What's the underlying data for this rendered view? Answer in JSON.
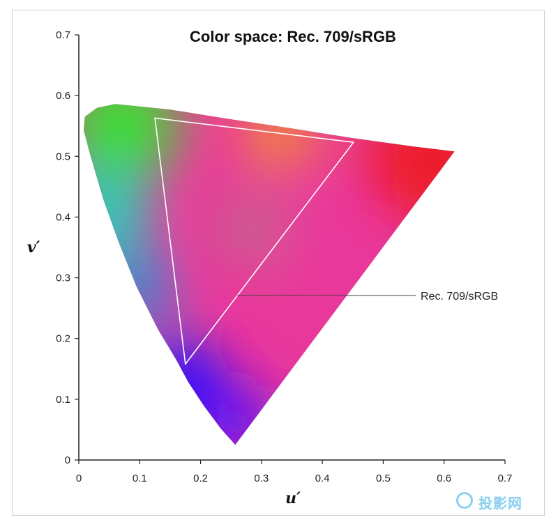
{
  "chart_data": {
    "type": "scatter",
    "title": "Color space: Rec. 709/sRGB",
    "xlabel": "u′",
    "ylabel": "v′",
    "xlim": [
      0,
      0.7
    ],
    "ylim": [
      0,
      0.7
    ],
    "x_ticks": [
      "0",
      "0.1",
      "0.2",
      "0.3",
      "0.4",
      "0.5",
      "0.6",
      "0.7"
    ],
    "y_ticks": [
      "0",
      "0.1",
      "0.2",
      "0.3",
      "0.4",
      "0.5",
      "0.6",
      "0.7"
    ],
    "grid": false,
    "spectral_locus": [
      [
        0.257,
        0.025
      ],
      [
        0.233,
        0.052
      ],
      [
        0.205,
        0.09
      ],
      [
        0.18,
        0.128
      ],
      [
        0.16,
        0.165
      ],
      [
        0.13,
        0.215
      ],
      [
        0.095,
        0.285
      ],
      [
        0.065,
        0.36
      ],
      [
        0.04,
        0.43
      ],
      [
        0.018,
        0.505
      ],
      [
        0.008,
        0.543
      ],
      [
        0.01,
        0.565
      ],
      [
        0.03,
        0.58
      ],
      [
        0.06,
        0.586
      ],
      [
        0.1,
        0.582
      ],
      [
        0.15,
        0.577
      ],
      [
        0.25,
        0.561
      ],
      [
        0.35,
        0.546
      ],
      [
        0.45,
        0.53
      ],
      [
        0.55,
        0.516
      ],
      [
        0.617,
        0.508
      ]
    ],
    "gamut": {
      "name": "Rec. 709/sRGB",
      "red": [
        0.451,
        0.523
      ],
      "green": [
        0.125,
        0.563
      ],
      "blue": [
        0.175,
        0.158
      ]
    },
    "annotation": {
      "text": "Rec. 709/sRGB",
      "point": [
        0.26,
        0.271
      ]
    },
    "colors": {
      "red": "#ee1d2a",
      "green": "#3fdc36",
      "blue": "#1e10ff",
      "magenta": "#e9379b",
      "cyan": "#30c9b7",
      "violet": "#6018f5",
      "orange": "#f08a3a",
      "outline": "#ffffff"
    }
  },
  "watermark": {
    "text": "投影网"
  }
}
